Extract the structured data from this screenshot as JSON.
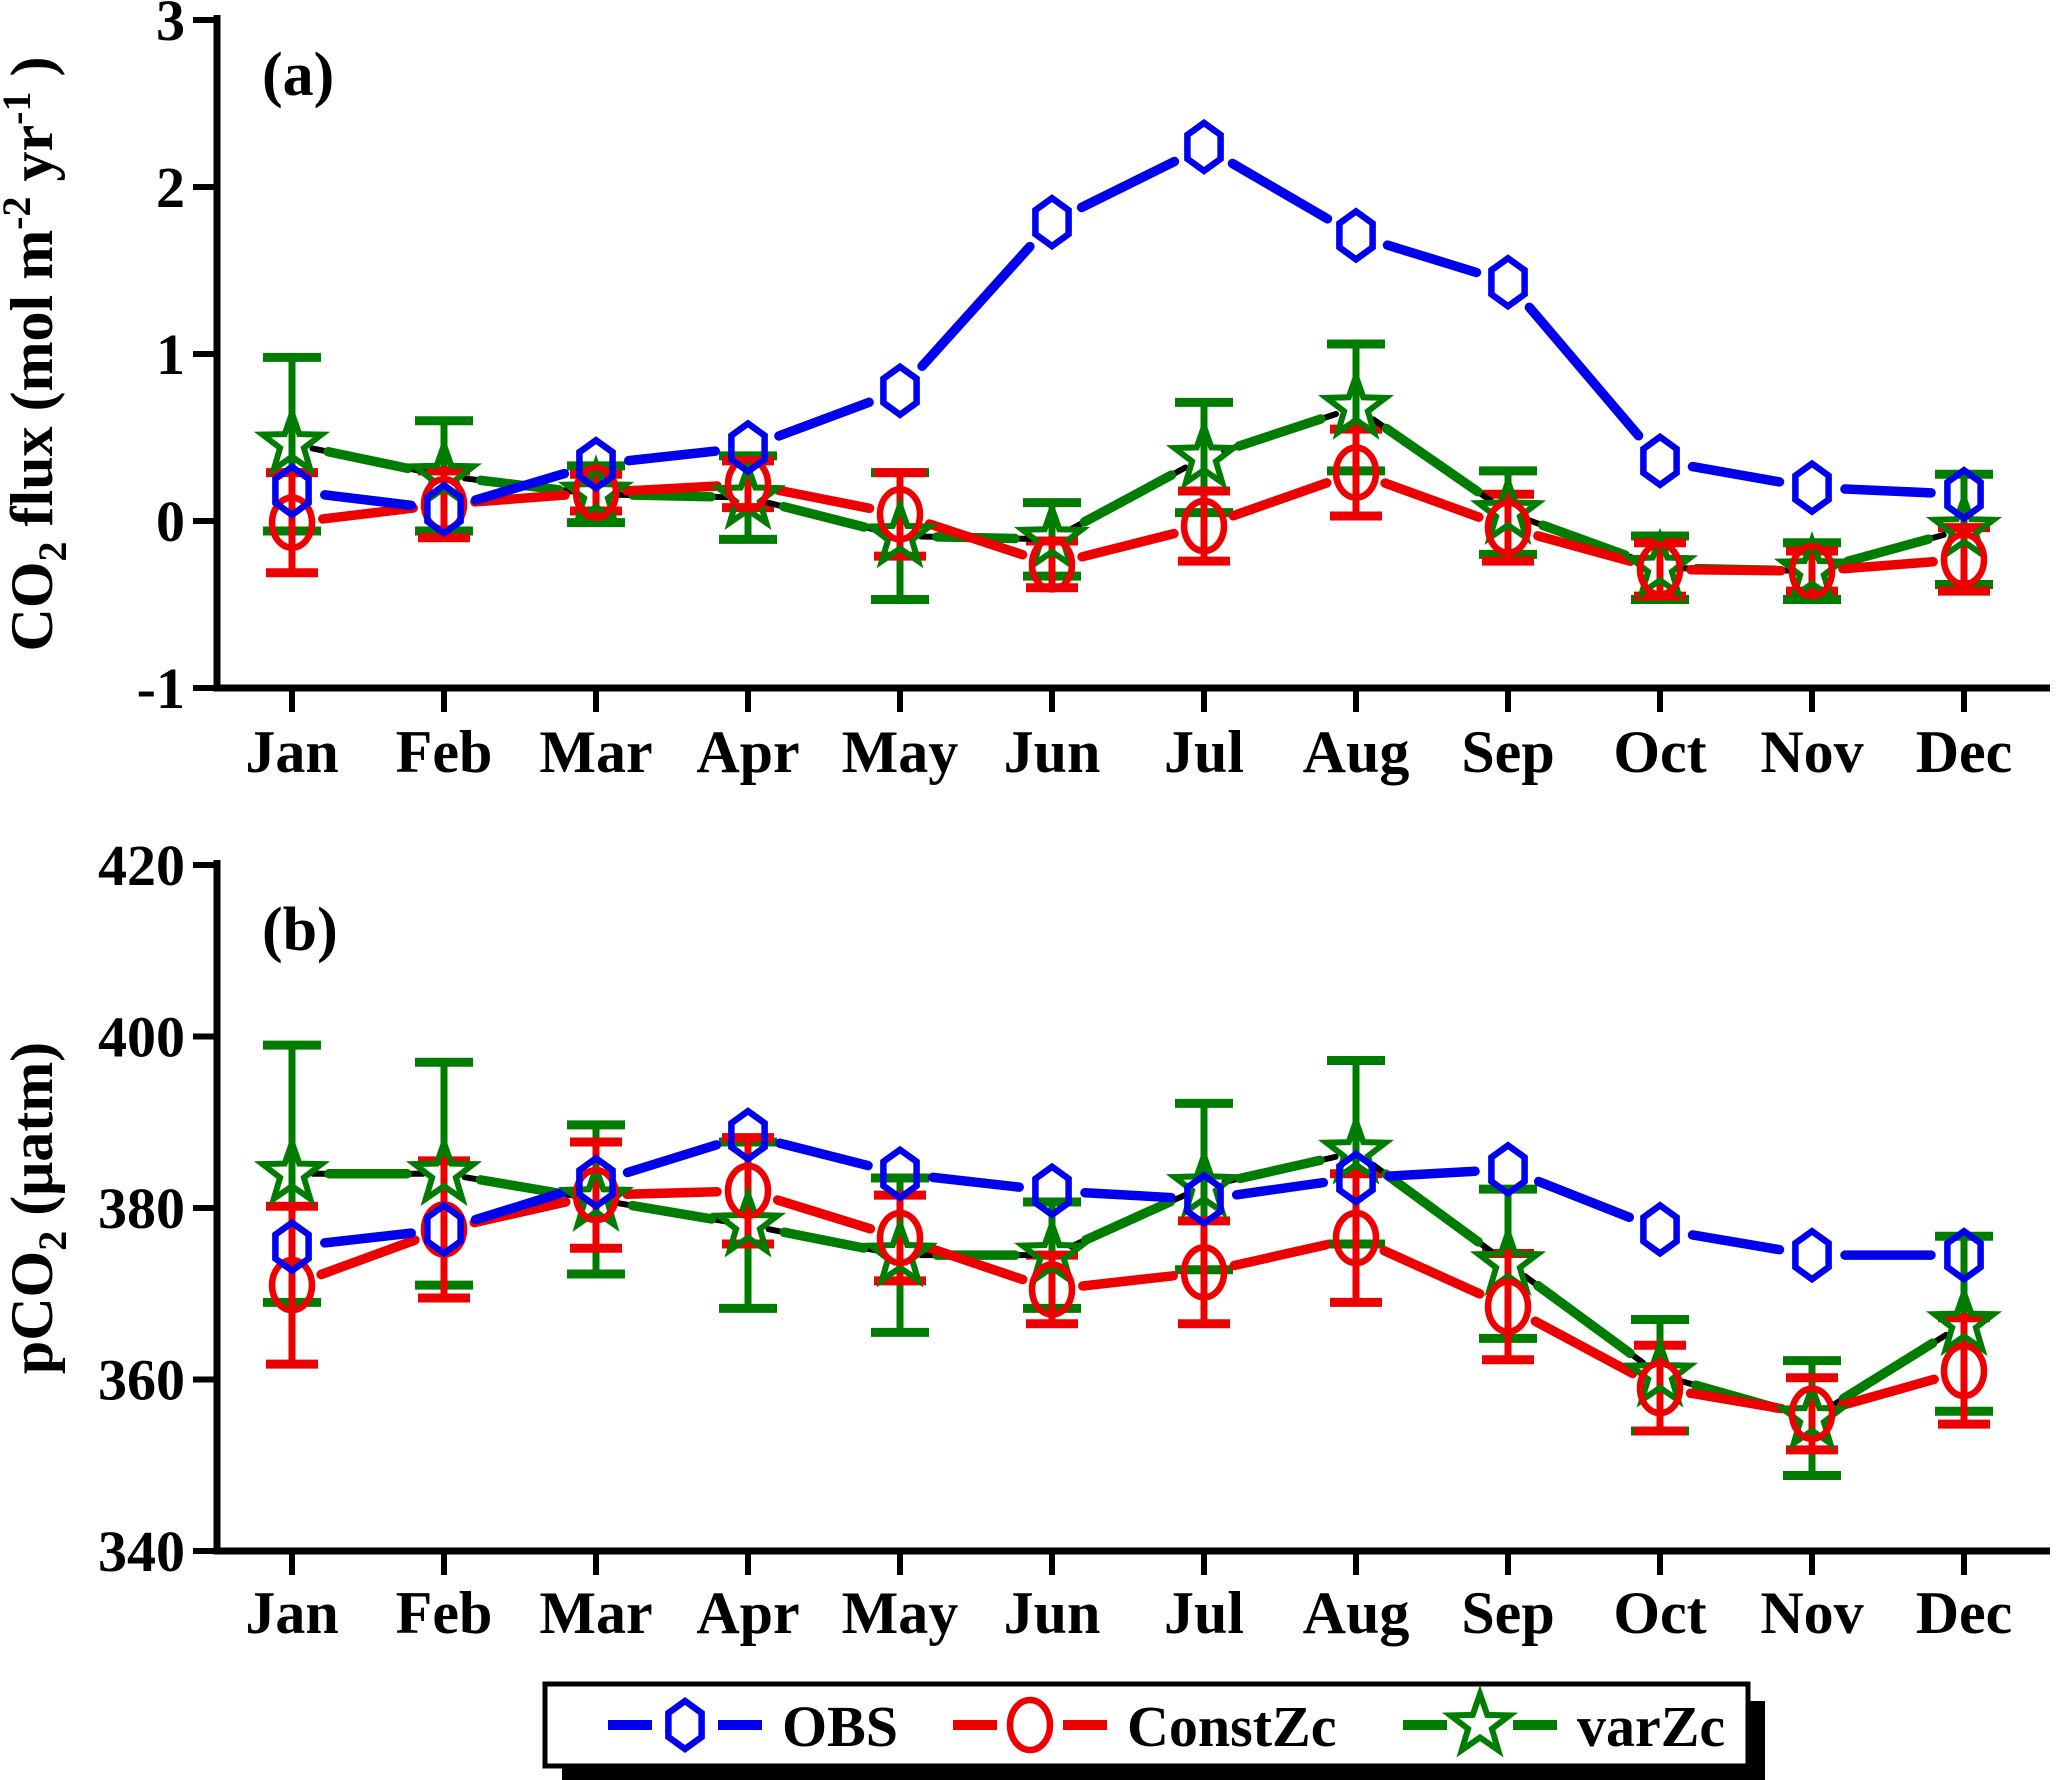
{
  "figure": {
    "background": "#ffffff",
    "axis_color": "#000000",
    "colors": {
      "obs": "#0000ee",
      "constzc": "#ee0000",
      "varzc": "#007d00"
    }
  },
  "chart_data": [
    {
      "id": "a",
      "type": "line",
      "panel_label": "(a)",
      "ylabel_parts": [
        {
          "t": "CO"
        },
        {
          "t": "2",
          "style": "sub"
        },
        {
          "t": " flux (mol m"
        },
        {
          "t": "-2",
          "style": "sup"
        },
        {
          "t": " yr"
        },
        {
          "t": "-1",
          "style": "sup"
        },
        {
          "t": " )"
        }
      ],
      "ylim": [
        -1,
        3
      ],
      "yticks": [
        3,
        2,
        1,
        0,
        -1
      ],
      "grid": false,
      "categories": [
        "Jan",
        "Feb",
        "Mar",
        "Apr",
        "May",
        "Jun",
        "Jul",
        "Aug",
        "Sep",
        "Oct",
        "Nov",
        "Dec"
      ],
      "series": [
        {
          "name": "varZc",
          "marker": "star",
          "color": "#007d00",
          "values": [
            0.46,
            0.27,
            0.16,
            0.14,
            -0.09,
            -0.11,
            0.38,
            0.68,
            0.05,
            -0.28,
            -0.3,
            -0.05
          ],
          "errors": [
            0.52,
            0.33,
            0.17,
            0.25,
            0.38,
            0.22,
            0.33,
            0.38,
            0.25,
            0.19,
            0.17,
            0.33
          ]
        },
        {
          "name": "ConstZc",
          "marker": "ellipse",
          "color": "#ee0000",
          "values": [
            -0.01,
            0.1,
            0.17,
            0.22,
            0.04,
            -0.26,
            -0.03,
            0.29,
            -0.04,
            -0.29,
            -0.3,
            -0.23
          ],
          "errors": [
            0.3,
            0.2,
            0.11,
            0.14,
            0.25,
            0.14,
            0.21,
            0.26,
            0.2,
            0.16,
            0.12,
            0.19
          ]
        },
        {
          "name": "OBS",
          "marker": "hexagon",
          "color": "#0000ee",
          "values": [
            0.18,
            0.07,
            0.34,
            0.44,
            0.78,
            1.79,
            2.24,
            1.71,
            1.43,
            0.36,
            0.2,
            0.16
          ],
          "errors": null
        }
      ]
    },
    {
      "id": "b",
      "type": "line",
      "panel_label": "(b)",
      "ylabel_parts": [
        {
          "t": "pCO"
        },
        {
          "t": "2",
          "style": "sub"
        },
        {
          "t": " (μatm)"
        }
      ],
      "ylim": [
        340,
        420
      ],
      "yticks": [
        420,
        400,
        380,
        360,
        340
      ],
      "grid": false,
      "categories": [
        "Jan",
        "Feb",
        "Mar",
        "Apr",
        "May",
        "Jun",
        "Jul",
        "Aug",
        "Sep",
        "Oct",
        "Nov",
        "Dec"
      ],
      "series": [
        {
          "name": "varZc",
          "marker": "star",
          "color": "#007d00",
          "values": [
            384,
            384,
            381,
            378,
            374.5,
            374.5,
            382.5,
            386.5,
            373.5,
            360.5,
            355.5,
            366.5
          ],
          "errors": [
            15,
            13,
            8.7,
            9.7,
            9,
            6.2,
            9.7,
            10.7,
            8.7,
            6.5,
            6.7,
            10.2
          ]
        },
        {
          "name": "ConstZc",
          "marker": "ellipse",
          "color": "#ee0000",
          "values": [
            371,
            377.5,
            381.5,
            382,
            376.5,
            370.5,
            372.5,
            376.5,
            368.5,
            359,
            356,
            361
          ],
          "errors": [
            9.2,
            8,
            6.2,
            6.2,
            5,
            4,
            6,
            7.5,
            6.2,
            5,
            4.2,
            6.2
          ]
        },
        {
          "name": "OBS",
          "marker": "hexagon",
          "color": "#0000ee",
          "values": [
            375.5,
            377.5,
            383,
            388.5,
            384,
            382,
            381,
            383.5,
            384.5,
            377.5,
            374.5,
            374.5
          ],
          "errors": null
        }
      ]
    }
  ],
  "legend": {
    "position": "bottom-center",
    "items": [
      {
        "label": "OBS",
        "marker": "hexagon",
        "color": "#0000ee"
      },
      {
        "label": "ConstZc",
        "marker": "ellipse",
        "color": "#ee0000"
      },
      {
        "label": "varZc",
        "marker": "star",
        "color": "#007d00"
      }
    ]
  }
}
